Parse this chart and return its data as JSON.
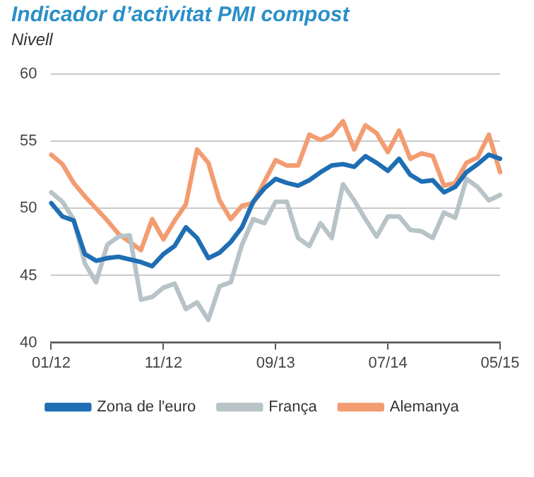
{
  "chart_data": {
    "type": "line",
    "title": "Indicador d’activitat PMI compost",
    "ylabel": "Nivell",
    "categories": [
      "01/12",
      null,
      null,
      null,
      null,
      null,
      null,
      null,
      null,
      null,
      "11/12",
      null,
      null,
      null,
      null,
      null,
      null,
      null,
      null,
      null,
      "09/13",
      null,
      null,
      null,
      null,
      null,
      null,
      null,
      null,
      null,
      "07/14",
      null,
      null,
      null,
      null,
      null,
      null,
      null,
      null,
      null,
      "05/15"
    ],
    "series": [
      {
        "name": "Zona de l'euro",
        "color": "#1f6eb4",
        "values": [
          50.4,
          49.4,
          49.1,
          46.6,
          46.1,
          46.3,
          46.4,
          46.2,
          46.0,
          45.7,
          46.6,
          47.2,
          48.6,
          47.8,
          46.3,
          46.7,
          47.5,
          48.6,
          50.5,
          51.5,
          52.2,
          51.9,
          51.7,
          52.1,
          52.7,
          53.2,
          53.3,
          53.1,
          53.9,
          53.4,
          52.8,
          53.7,
          52.5,
          52.0,
          52.1,
          51.2,
          51.6,
          52.7,
          53.3,
          54.0,
          53.7
        ]
      },
      {
        "name": "França",
        "color": "#b7c3c7",
        "values": [
          51.2,
          50.5,
          49.2,
          45.9,
          44.5,
          47.3,
          47.9,
          48.0,
          43.2,
          43.4,
          44.1,
          44.4,
          42.5,
          43.0,
          41.7,
          44.2,
          44.5,
          47.3,
          49.2,
          48.9,
          50.5,
          50.5,
          47.8,
          47.2,
          48.9,
          47.8,
          51.8,
          50.6,
          49.2,
          47.9,
          49.4,
          49.4,
          48.4,
          48.3,
          47.8,
          49.7,
          49.3,
          52.2,
          51.6,
          50.6,
          51.0
        ]
      },
      {
        "name": "Alemanya",
        "color": "#f39c72",
        "values": [
          54.0,
          53.3,
          51.9,
          50.9,
          50.0,
          49.1,
          48.1,
          47.5,
          46.9,
          49.2,
          47.7,
          49.1,
          50.3,
          54.4,
          53.4,
          50.6,
          49.2,
          50.2,
          50.4,
          52.0,
          53.6,
          53.2,
          53.2,
          55.5,
          55.1,
          55.5,
          56.5,
          54.4,
          56.2,
          55.6,
          54.2,
          55.8,
          53.7,
          54.1,
          53.9,
          51.7,
          51.9,
          53.4,
          53.8,
          55.5,
          52.7
        ]
      }
    ],
    "ylim": [
      40,
      60
    ],
    "yticks": [
      40,
      45,
      50,
      55,
      60
    ],
    "grid": "y",
    "legend": "bottom",
    "marker": "none",
    "line_style": "solid"
  }
}
